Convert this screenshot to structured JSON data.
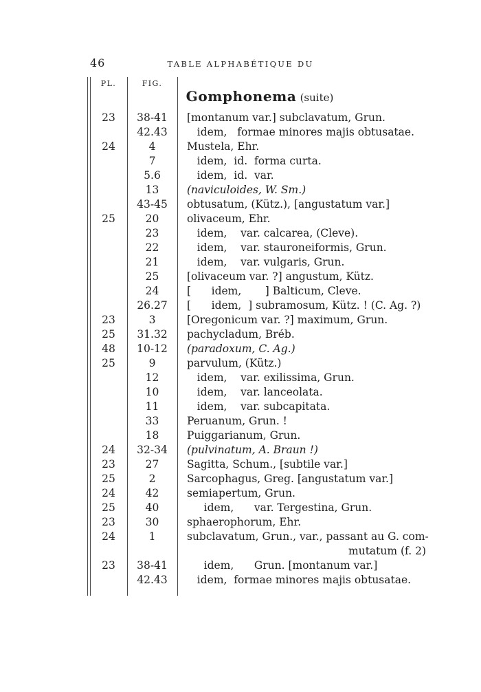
{
  "page": {
    "number": "46",
    "running_head": "TABLE ALPHABÉTIQUE DU"
  },
  "colors": {
    "paper": "#ffffff",
    "ink": "#1f1f1f",
    "rule": "#4a4a4a"
  },
  "table": {
    "columns": {
      "pl": "PL.",
      "fig": "FIG."
    },
    "title": "Gomphonema",
    "title_suffix": "(suite)",
    "rows": [
      {
        "pl": "23",
        "fig": "38-41",
        "text": "[montanum var.] subclavatum, Grun."
      },
      {
        "fig": "42.43",
        "text": "   idem,   formae minores majis obtusatae."
      },
      {
        "pl": "24",
        "fig": "4",
        "text": "Mustela, Ehr."
      },
      {
        "fig": "7",
        "text": "   idem,  id.  forma curta."
      },
      {
        "fig": "5.6",
        "text": "   idem,  id.  var."
      },
      {
        "fig": "13",
        "text": "(naviculoides, W. Sm.)",
        "italic": true
      },
      {
        "fig": "43-45",
        "text": "obtusatum, (Kütz.), [angustatum var.]"
      },
      {
        "pl": "25",
        "fig": "20",
        "text": "olivaceum, Ehr."
      },
      {
        "fig": "23",
        "text": "   idem,    var. calcarea, (Cleve)."
      },
      {
        "fig": "22",
        "text": "   idem,    var. stauroneiformis, Grun."
      },
      {
        "fig": "21",
        "text": "   idem,    var. vulgaris, Grun."
      },
      {
        "fig": "25",
        "text": "[olivaceum var. ?] angustum, Kütz."
      },
      {
        "fig": "24",
        "text": "[      idem,       ] Balticum, Cleve."
      },
      {
        "fig": "26.27",
        "text": "[      idem,  ] subramosum, Kütz. ! (C. Ag. ?)"
      },
      {
        "pl": "23",
        "fig": "3",
        "text": "[Oregonicum var. ?] maximum, Grun."
      },
      {
        "pl": "25",
        "fig": "31.32",
        "text": "pachycladum, Bréb."
      },
      {
        "pl": "48",
        "fig": "10-12",
        "text": "(paradoxum, C. Ag.)",
        "italic": true
      },
      {
        "pl": "25",
        "fig": "9",
        "text": "parvulum, (Kütz.)"
      },
      {
        "fig": "12",
        "text": "   idem,    var. exilissima, Grun."
      },
      {
        "fig": "10",
        "text": "   idem,    var. lanceolata."
      },
      {
        "fig": "11",
        "text": "   idem,    var. subcapitata."
      },
      {
        "fig": "33",
        "text": "Peruanum, Grun. !"
      },
      {
        "fig": "18",
        "text": "Puiggarianum, Grun."
      },
      {
        "pl": "24",
        "fig": "32-34",
        "text": "(pulvinatum, A. Braun !)",
        "italic": true
      },
      {
        "pl": "23",
        "fig": "27",
        "text": "Sagitta, Schum., [subtile var.]"
      },
      {
        "pl": "25",
        "fig": "2",
        "text": "Sarcophagus, Greg. [angustatum var.]"
      },
      {
        "pl": "24",
        "fig": "42",
        "text": "semiapertum, Grun."
      },
      {
        "pl": "25",
        "fig": "40",
        "text": "     idem,      var. Tergestina, Grun."
      },
      {
        "pl": "23",
        "fig": "30",
        "text": "sphaerophorum, Ehr."
      },
      {
        "pl": "24",
        "fig": "1",
        "text": "subclavatum, Grun., var., passant au G. com-"
      },
      {
        "text": "mutatum (f. 2)",
        "align": "right"
      },
      {
        "pl": "23",
        "fig": "38-41",
        "text": "     idem,      Grun. [montanum var.]"
      },
      {
        "fig": "42.43",
        "text": "   idem,  formae minores majis obtusatae."
      }
    ]
  }
}
